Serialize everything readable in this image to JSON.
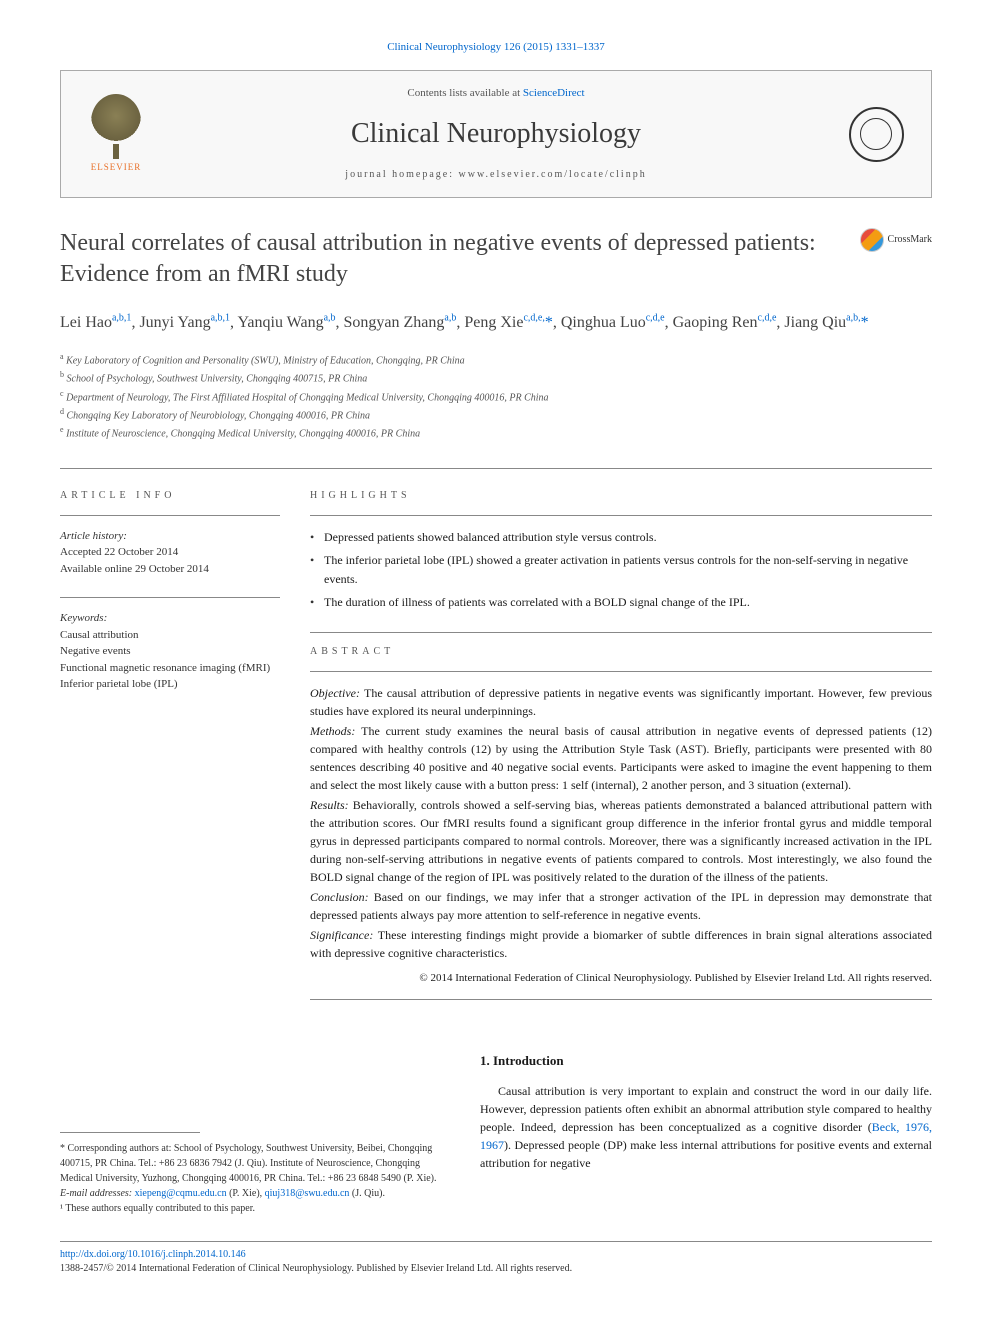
{
  "journal_ref": "Clinical Neurophysiology 126 (2015) 1331–1337",
  "header": {
    "publisher": "ELSEVIER",
    "contents_prefix": "Contents lists available at ",
    "contents_link": "ScienceDirect",
    "journal_name": "Clinical Neurophysiology",
    "homepage_prefix": "journal homepage: ",
    "homepage_url": "www.elsevier.com/locate/clinph"
  },
  "title": "Neural correlates of causal attribution in negative events of depressed patients: Evidence from an fMRI study",
  "crossmark": "CrossMark",
  "authors_html": "Lei Hao<sup class='sup'>a,b,1</sup>, Junyi Yang<sup class='sup'>a,b,1</sup>, Yanqiu Wang<sup class='sup'>a,b</sup>, Songyan Zhang<sup class='sup'>a,b</sup>, Peng Xie<sup class='sup'>c,d,e,</sup><span class='ast'>*</span>, Qinghua Luo<sup class='sup'>c,d,e</sup>, Gaoping Ren<sup class='sup'>c,d,e</sup>, Jiang Qiu<sup class='sup'>a,b,</sup><span class='ast'>*</span>",
  "affiliations": [
    {
      "sup": "a",
      "text": "Key Laboratory of Cognition and Personality (SWU), Ministry of Education, Chongqing, PR China"
    },
    {
      "sup": "b",
      "text": "School of Psychology, Southwest University, Chongqing 400715, PR China"
    },
    {
      "sup": "c",
      "text": "Department of Neurology, The First Affiliated Hospital of Chongqing Medical University, Chongqing 400016, PR China"
    },
    {
      "sup": "d",
      "text": "Chongqing Key Laboratory of Neurobiology, Chongqing 400016, PR China"
    },
    {
      "sup": "e",
      "text": "Institute of Neuroscience, Chongqing Medical University, Chongqing 400016, PR China"
    }
  ],
  "article_info": {
    "label": "ARTICLE INFO",
    "history_label": "Article history:",
    "accepted": "Accepted 22 October 2014",
    "online": "Available online 29 October 2014",
    "keywords_label": "Keywords:",
    "keywords": [
      "Causal attribution",
      "Negative events",
      "Functional magnetic resonance imaging (fMRI)",
      "Inferior parietal lobe (IPL)"
    ]
  },
  "highlights": {
    "label": "HIGHLIGHTS",
    "items": [
      "Depressed patients showed balanced attribution style versus controls.",
      "The inferior parietal lobe (IPL) showed a greater activation in patients versus controls for the non-self-serving in negative events.",
      "The duration of illness of patients was correlated with a BOLD signal change of the IPL."
    ]
  },
  "abstract": {
    "label": "ABSTRACT",
    "sections": [
      {
        "name": "Objective:",
        "text": "The causal attribution of depressive patients in negative events was significantly important. However, few previous studies have explored its neural underpinnings."
      },
      {
        "name": "Methods:",
        "text": "The current study examines the neural basis of causal attribution in negative events of depressed patients (12) compared with healthy controls (12) by using the Attribution Style Task (AST). Briefly, participants were presented with 80 sentences describing 40 positive and 40 negative social events. Participants were asked to imagine the event happening to them and select the most likely cause with a button press: 1 self (internal), 2 another person, and 3 situation (external)."
      },
      {
        "name": "Results:",
        "text": "Behaviorally, controls showed a self-serving bias, whereas patients demonstrated a balanced attributional pattern with the attribution scores. Our fMRI results found a significant group difference in the inferior frontal gyrus and middle temporal gyrus in depressed participants compared to normal controls. Moreover, there was a significantly increased activation in the IPL during non-self-serving attributions in negative events of patients compared to controls. Most interestingly, we also found the BOLD signal change of the region of IPL was positively related to the duration of the illness of the patients."
      },
      {
        "name": "Conclusion:",
        "text": "Based on our findings, we may infer that a stronger activation of the IPL in depression may demonstrate that depressed patients always pay more attention to self-reference in negative events."
      },
      {
        "name": "Significance:",
        "text": "These interesting findings might provide a biomarker of subtle differences in brain signal alterations associated with depressive cognitive characteristics."
      }
    ],
    "copyright": "© 2014 International Federation of Clinical Neurophysiology. Published by Elsevier Ireland Ltd. All rights reserved."
  },
  "intro": {
    "heading": "1. Introduction",
    "text_before_ref": "Causal attribution is very important to explain and construct the word in our daily life. However, depression patients often exhibit an abnormal attribution style compared to healthy people. Indeed, depression has been conceptualized as a cognitive disorder (",
    "ref": "Beck, 1976, 1967",
    "text_after_ref": "). Depressed people (DP) make less internal attributions for positive events and external attribution for negative"
  },
  "footnotes": {
    "corresponding": "* Corresponding authors at: School of Psychology, Southwest University, Beibei, Chongqing 400715, PR China. Tel.: +86 23 6836 7942 (J. Qiu). Institute of Neuroscience, Chongqing Medical University, Yuzhong, Chongqing 400016, PR China. Tel.: +86 23 6848 5490 (P. Xie).",
    "email_label": "E-mail addresses: ",
    "email1": "xiepeng@cqmu.edu.cn",
    "email1_who": " (P. Xie), ",
    "email2": "qiuj318@swu.edu.cn",
    "email2_who": " (J. Qiu).",
    "contrib": "¹ These authors equally contributed to this paper."
  },
  "footer": {
    "doi": "http://dx.doi.org/10.1016/j.clinph.2014.10.146",
    "issn_copyright": "1388-2457/© 2014 International Federation of Clinical Neurophysiology. Published by Elsevier Ireland Ltd. All rights reserved."
  },
  "colors": {
    "link": "#0066cc",
    "text": "#1a1a1a",
    "muted": "#555555",
    "border": "#888888",
    "elsevier_orange": "#e8712a"
  },
  "typography": {
    "body_size": 13,
    "title_size": 24,
    "journal_name_size": 28,
    "author_size": 16,
    "abstract_size": 12,
    "small_size": 11,
    "footnote_size": 10
  }
}
